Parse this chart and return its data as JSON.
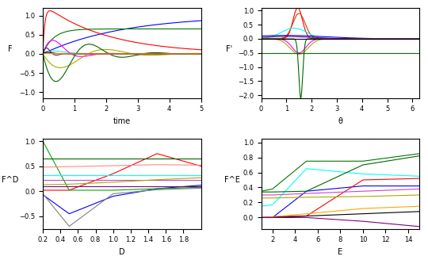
{
  "top_left": {
    "xlabel": "time",
    "ylabel": "F",
    "xlim": [
      0,
      5
    ],
    "ylim": [
      -1.15,
      1.2
    ],
    "xticks": [
      0,
      1,
      2,
      3,
      4,
      5
    ],
    "yticks": [
      -1,
      -0.5,
      0,
      0.5,
      1
    ]
  },
  "top_right": {
    "xlabel": "θ",
    "ylabel": "F'",
    "xlim": [
      0,
      6.28
    ],
    "ylim": [
      -2.1,
      1.1
    ],
    "xticks": [
      0,
      1,
      2,
      3,
      4,
      5,
      6
    ],
    "yticks": [
      -2,
      -1.5,
      -1,
      -0.5,
      0,
      0.5,
      1
    ]
  },
  "bottom_left": {
    "xlabel": "D",
    "ylabel": "F^D",
    "xlim": [
      0.2,
      2.0
    ],
    "ylim": [
      -0.75,
      1.05
    ],
    "xticks": [
      0.2,
      0.4,
      0.6,
      0.8,
      1.0,
      1.2,
      1.4,
      1.6,
      1.8
    ],
    "yticks": [
      -0.5,
      0,
      0.5,
      1.0
    ]
  },
  "bottom_right": {
    "xlabel": "E",
    "ylabel": "F^E",
    "xlim": [
      1,
      15
    ],
    "ylim": [
      -0.15,
      1.05
    ],
    "xticks": [
      2,
      4,
      6,
      8,
      10,
      12,
      14
    ],
    "yticks": [
      0,
      0.2,
      0.4,
      0.6,
      0.8,
      1.0
    ]
  }
}
